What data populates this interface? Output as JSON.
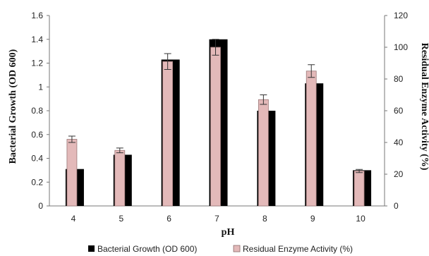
{
  "chart_data": {
    "type": "bar",
    "title": "",
    "xlabel": "pH",
    "ylabel": "Bacterial Growth (OD 600)",
    "y2label": "Residual Enzyme Activity (%)",
    "categories": [
      "4",
      "5",
      "6",
      "7",
      "8",
      "9",
      "10"
    ],
    "ylim": [
      0,
      1.6
    ],
    "y_ticks": [
      "0",
      "0.2",
      "0.4",
      "0.6",
      "0.8",
      "1",
      "1.2",
      "1.4",
      "1.6"
    ],
    "y2lim": [
      0,
      120
    ],
    "y2_ticks": [
      "0",
      "20",
      "40",
      "60",
      "80",
      "100",
      "120"
    ],
    "grid": false,
    "legend_position": "bottom",
    "series": [
      {
        "name": "Bacterial Growth (OD 600)",
        "axis": "left",
        "color": "#000000",
        "values": [
          0.31,
          0.43,
          1.23,
          1.4,
          0.8,
          1.03,
          0.3
        ]
      },
      {
        "name": "Residual Enzyme Activity (%)",
        "axis": "right",
        "color": "#e3b9b9",
        "values": [
          42,
          35,
          91,
          100,
          67,
          85,
          22
        ],
        "errors": [
          2,
          1.5,
          5,
          5,
          3,
          4,
          1
        ]
      }
    ]
  }
}
